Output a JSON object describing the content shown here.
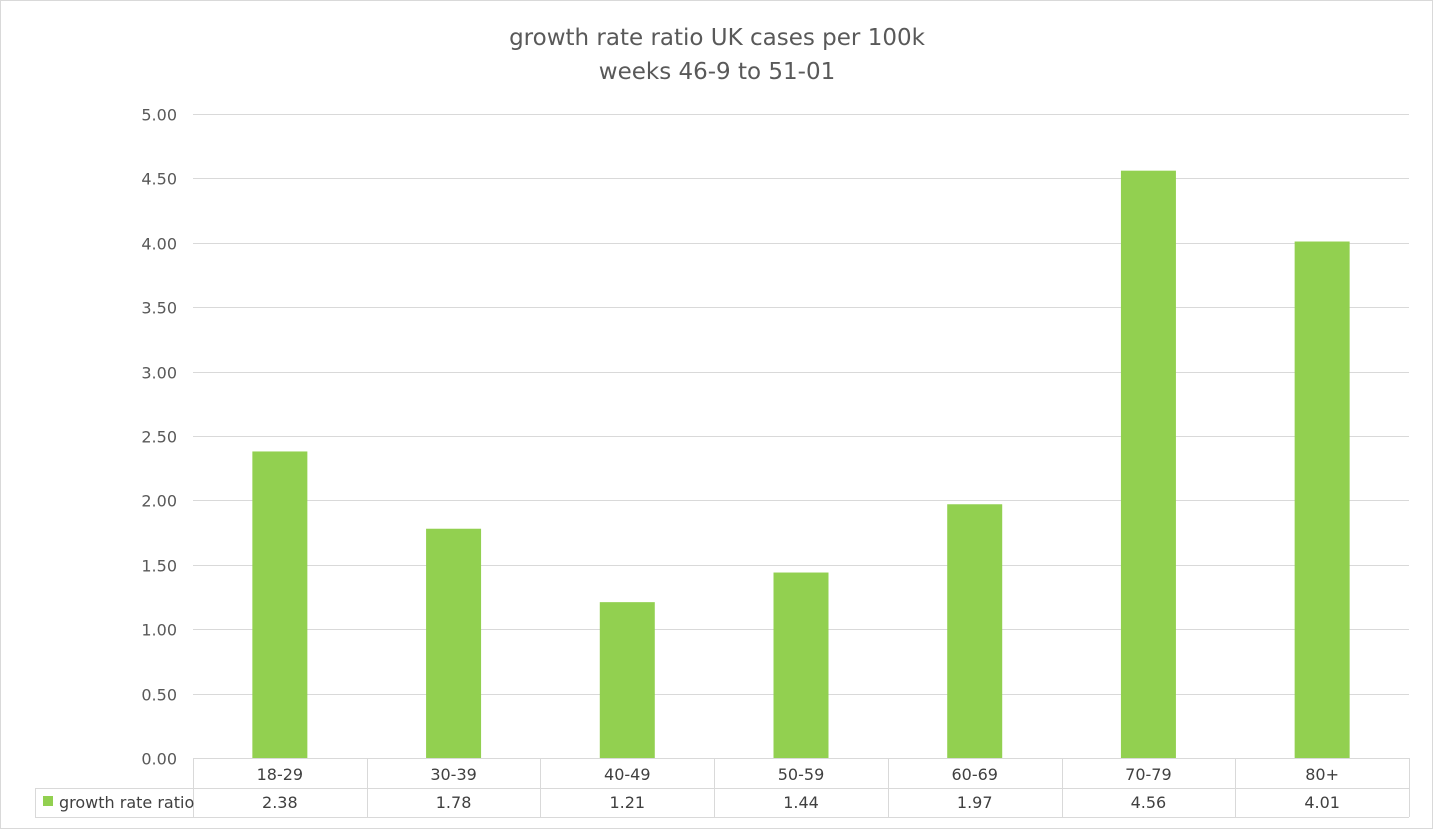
{
  "chart_data": {
    "type": "bar",
    "title": [
      "growth rate ratio UK cases per 100k",
      "weeks 46-9 to 51-01"
    ],
    "categories": [
      "18-29",
      "30-39",
      "40-49",
      "50-59",
      "60-69",
      "70-79",
      "80+"
    ],
    "series": [
      {
        "name": "growth rate ratio",
        "values": [
          2.38,
          1.78,
          1.21,
          1.44,
          1.97,
          4.56,
          4.01
        ],
        "value_labels": [
          "2.38",
          "1.78",
          "1.21",
          "1.44",
          "1.97",
          "4.56",
          "4.01"
        ],
        "color": "#92d050"
      }
    ],
    "ylim": [
      0,
      5
    ],
    "yticks": [
      "0.00",
      "0.50",
      "1.00",
      "1.50",
      "2.00",
      "2.50",
      "3.00",
      "3.50",
      "4.00",
      "4.50",
      "5.00"
    ],
    "xlabel": "",
    "ylabel": "",
    "grid": true,
    "legend": "data-table"
  },
  "colors": {
    "grid": "#d9d9d9",
    "text": "#595959",
    "bar": "#92d050"
  }
}
